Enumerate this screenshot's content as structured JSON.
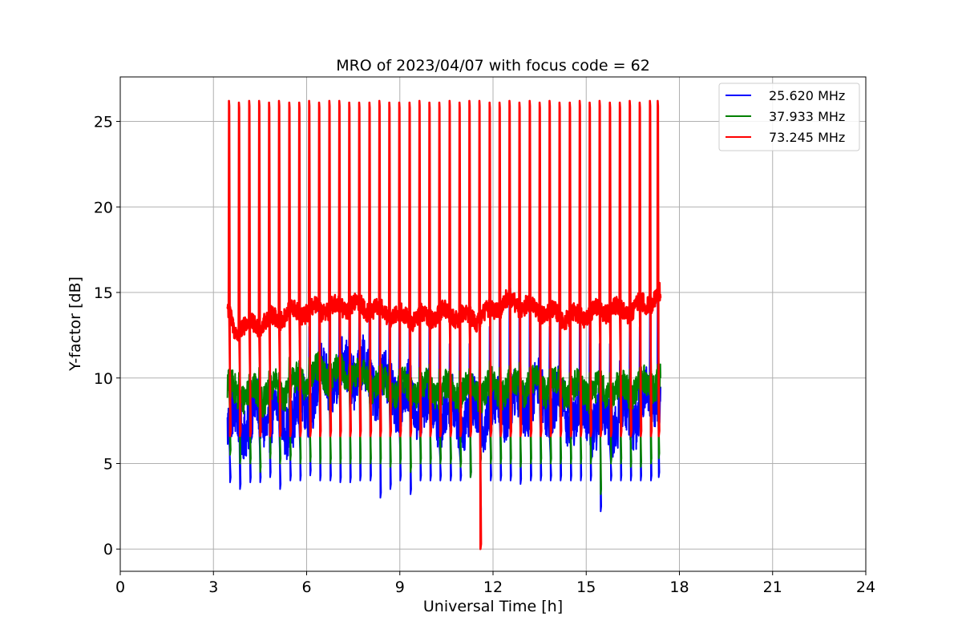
{
  "chart_data": {
    "type": "line",
    "title": "MRO of 2023/04/07 with focus code = 62",
    "xlabel": "Universal Time [h]",
    "ylabel": "Y-factor [dB]",
    "xlim": [
      0,
      24
    ],
    "ylim": [
      -1.3,
      27.6
    ],
    "xticks": [
      0,
      3,
      6,
      9,
      12,
      15,
      18,
      21,
      24
    ],
    "yticks": [
      0,
      5,
      10,
      15,
      20,
      25
    ],
    "grid": true,
    "legend_position": "top-right",
    "spike_times": [
      3.5,
      3.82,
      4.15,
      4.47,
      4.79,
      5.11,
      5.44,
      5.76,
      6.08,
      6.4,
      6.73,
      7.05,
      7.37,
      7.69,
      8.02,
      8.34,
      8.66,
      8.98,
      9.31,
      9.63,
      9.95,
      10.27,
      10.6,
      10.92,
      11.24,
      11.56,
      11.89,
      12.21,
      12.53,
      12.85,
      13.18,
      13.5,
      13.82,
      14.14,
      14.47,
      14.79,
      15.11,
      15.43,
      15.76,
      16.08,
      16.4,
      16.72,
      17.05,
      17.3
    ],
    "series": [
      {
        "name": "25.620 MHz",
        "color": "#0000ff",
        "baseline": [
          [
            3.45,
            7.3
          ],
          [
            4.5,
            7.8
          ],
          [
            5.5,
            7.5
          ],
          [
            6.5,
            9.8
          ],
          [
            7.5,
            10.5
          ],
          [
            8.5,
            9.5
          ],
          [
            9.5,
            8.5
          ],
          [
            10.5,
            8.0
          ],
          [
            11.5,
            7.8
          ],
          [
            12.5,
            8.5
          ],
          [
            13.5,
            9.0
          ],
          [
            14.5,
            8.0
          ],
          [
            15.5,
            7.5
          ],
          [
            16.5,
            8.0
          ],
          [
            17.4,
            9.5
          ]
        ],
        "spike_highs": [
          8,
          8,
          8,
          8,
          9,
          9,
          10,
          11,
          13,
          16,
          17,
          18,
          15,
          14,
          16,
          17,
          17,
          14,
          16,
          17,
          18,
          14,
          12,
          13,
          12,
          14,
          13,
          15,
          16,
          19,
          17,
          14,
          13,
          15,
          14,
          16,
          16,
          12,
          12,
          11,
          14,
          13,
          15,
          17
        ],
        "spike_lows": [
          3.9,
          3.5,
          3.9,
          3.9,
          4.2,
          3.5,
          4.0,
          4.0,
          4.3,
          4.0,
          4.0,
          3.9,
          3.9,
          4.0,
          4.0,
          3.0,
          3.5,
          4.0,
          3.2,
          4.0,
          4.0,
          4.0,
          4.0,
          4.0,
          4.2,
          2.0,
          4.0,
          4.0,
          4.0,
          3.8,
          4.0,
          4.0,
          4.0,
          4.0,
          4.0,
          4.0,
          4.0,
          2.2,
          4.0,
          4.0,
          4.0,
          4.0,
          4.0,
          4.2
        ]
      },
      {
        "name": "37.933 MHz",
        "color": "#008000",
        "baseline": [
          [
            3.45,
            9.3
          ],
          [
            4.5,
            9.0
          ],
          [
            5.5,
            9.5
          ],
          [
            6.5,
            10.3
          ],
          [
            7.5,
            10.2
          ],
          [
            8.5,
            9.5
          ],
          [
            9.5,
            9.3
          ],
          [
            10.5,
            9.3
          ],
          [
            11.5,
            9.2
          ],
          [
            12.5,
            9.5
          ],
          [
            13.5,
            9.6
          ],
          [
            14.5,
            9.3
          ],
          [
            15.5,
            9.2
          ],
          [
            16.5,
            9.4
          ],
          [
            17.4,
            10.0
          ]
        ],
        "spike_highs": [
          10.5,
          10.3,
          10.2,
          10.6,
          10.4,
          10.3,
          11.2,
          11.0,
          11.2,
          11.0,
          11.5,
          11.2,
          10.8,
          10.9,
          11.0,
          10.5,
          10.8,
          10.5,
          10.4,
          10.6,
          10.8,
          10.5,
          10.5,
          10.4,
          10.3,
          10.6,
          11.0,
          10.6,
          10.7,
          10.9,
          10.6,
          10.6,
          10.5,
          10.7,
          10.3,
          10.2,
          10.3,
          10.2,
          10.3,
          10.4,
          10.5,
          10.6,
          10.3,
          10.8
        ],
        "spike_lows": [
          5.5,
          5.0,
          5.0,
          4.5,
          5.3,
          5.0,
          5.2,
          5.0,
          5.1,
          5.0,
          5.0,
          5.0,
          5.0,
          5.0,
          5.0,
          5.0,
          4.8,
          5.0,
          4.5,
          5.0,
          5.0,
          5.0,
          5.0,
          4.8,
          4.2,
          5.0,
          5.0,
          5.0,
          5.0,
          4.8,
          5.0,
          5.0,
          5.0,
          5.0,
          5.0,
          5.0,
          5.0,
          3.2,
          5.0,
          5.0,
          4.8,
          4.8,
          5.0,
          5.3
        ]
      },
      {
        "name": "73.245 MHz",
        "color": "#ff0000",
        "baseline": [
          [
            3.45,
            13.9
          ],
          [
            3.7,
            12.8
          ],
          [
            4.5,
            13.2
          ],
          [
            5.5,
            13.8
          ],
          [
            6.5,
            14.0
          ],
          [
            7.5,
            14.3
          ],
          [
            8.5,
            13.8
          ],
          [
            9.5,
            13.5
          ],
          [
            10.5,
            13.8
          ],
          [
            11.5,
            13.5
          ],
          [
            12.5,
            14.5
          ],
          [
            13.5,
            14.0
          ],
          [
            14.5,
            13.5
          ],
          [
            15.5,
            14.0
          ],
          [
            16.5,
            14.0
          ],
          [
            17.4,
            14.8
          ]
        ],
        "spike_highs": [
          26.2,
          26.1,
          26.2,
          26.2,
          26.1,
          26.2,
          26.1,
          26.1,
          26.2,
          26.1,
          26.2,
          26.2,
          26.1,
          26.1,
          26.1,
          26.2,
          26.1,
          26.1,
          26.1,
          26.2,
          26.1,
          26.1,
          26.2,
          26.1,
          26.2,
          26.2,
          26.1,
          26.1,
          26.2,
          26.1,
          26.2,
          26.1,
          26.2,
          26.1,
          26.1,
          26.2,
          26.1,
          26.2,
          26.1,
          26.1,
          26.2,
          26.1,
          26.2,
          26.2
        ],
        "spike_lows": [
          6.6,
          6.6,
          6.6,
          6.6,
          6.6,
          6.6,
          6.6,
          6.6,
          6.6,
          6.6,
          6.6,
          6.6,
          6.6,
          6.6,
          6.6,
          6.6,
          6.6,
          6.6,
          6.6,
          6.6,
          6.6,
          6.6,
          6.6,
          6.6,
          6.6,
          0.0,
          6.6,
          6.6,
          6.6,
          6.6,
          6.6,
          6.6,
          6.6,
          6.6,
          6.6,
          6.6,
          6.6,
          6.6,
          6.6,
          6.6,
          6.6,
          6.6,
          6.6,
          6.6
        ]
      }
    ]
  }
}
